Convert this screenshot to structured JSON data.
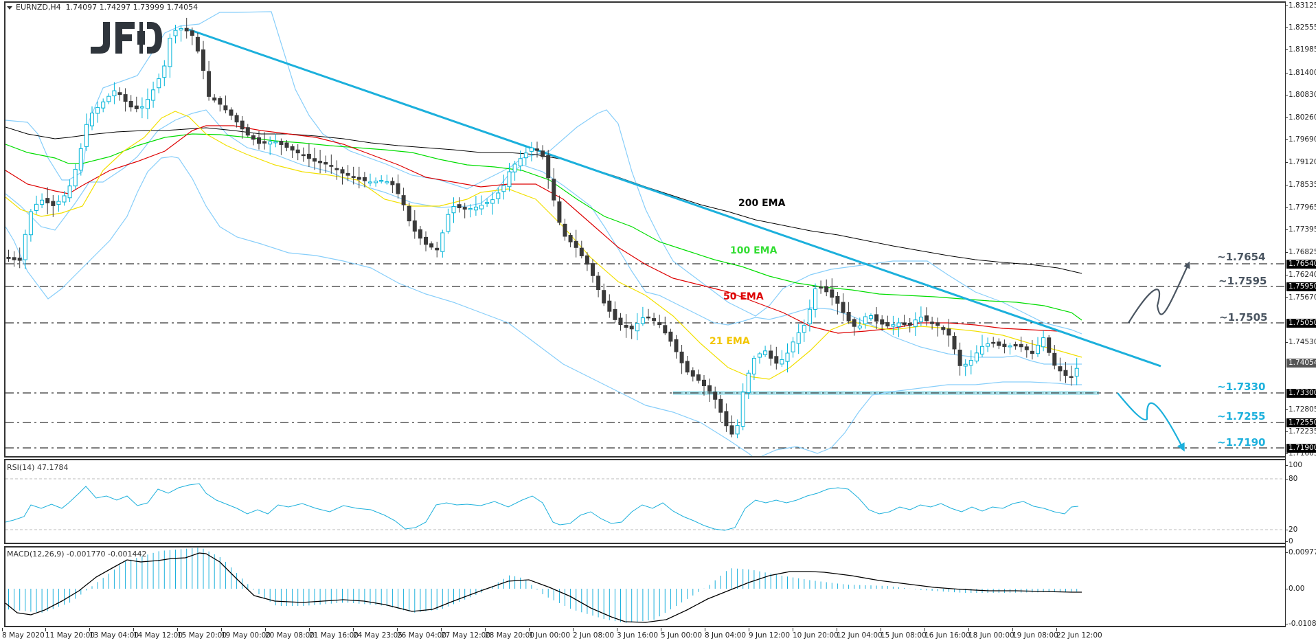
{
  "header": {
    "symbol": "EURNZD,H4",
    "ohlc": "1.74097 1.74297 1.73999 1.74054",
    "logo": "JFD"
  },
  "price_axis": {
    "ticks": [
      "1.83125",
      "1.82555",
      "1.81985",
      "1.81400",
      "1.80830",
      "1.80260",
      "1.79690",
      "1.79120",
      "1.78535",
      "1.77965",
      "1.77395",
      "1.76825",
      "1.76240",
      "1.75670",
      "1.74530",
      "1.72805",
      "1.72235",
      "1.71665"
    ],
    "labels": {
      "l1": "1.76540",
      "l2": "1.75950",
      "l3": "1.75050",
      "current": "1.74054",
      "l4": "1.73300",
      "l5": "1.72550",
      "l6": "1.71900"
    }
  },
  "annotations": {
    "ema200": "200 EMA",
    "ema100": "100 EMA",
    "ema50": "50 EMA",
    "ema21": "21 EMA",
    "r1": "~1.7654",
    "r2": "~1.7595",
    "r3": "~1.7505",
    "s1": "~1.7330",
    "s2": "~1.7255",
    "s3": "~1.7190"
  },
  "rsi": {
    "label": "RSI(14) 47.1784",
    "ticks": [
      "100",
      "80",
      "20",
      "0"
    ]
  },
  "macd": {
    "label": "MACD(12,26,9) -0.001770 -0.001442",
    "ticks": [
      "0.009779",
      "0.00",
      "-0.010821"
    ]
  },
  "time_axis": {
    "ticks": [
      "8 May 2020",
      "11 May 20:00",
      "13 May 04:00",
      "14 May 12:00",
      "15 May 20:00",
      "19 May 00:00",
      "20 May 08:00",
      "21 May 16:00",
      "24 May 23:05",
      "26 May 04:00",
      "27 May 12:00",
      "28 May 20:00",
      "1 Jun 00:00",
      "2 Jun 08:00",
      "3 Jun 16:00",
      "5 Jun 00:00",
      "8 Jun 04:00",
      "9 Jun 12:00",
      "10 Jun 20:00",
      "12 Jun 04:00",
      "15 Jun 08:00",
      "16 Jun 16:00",
      "18 Jun 00:00",
      "19 Jun 08:00",
      "22 Jun 12:00"
    ]
  },
  "colors": {
    "bull": "#00b4d8",
    "bear": "#3a3a3a",
    "ema200": "#000000",
    "ema100": "#00dd00",
    "ema50": "#dd0000",
    "ema21": "#f2e000",
    "bollinger": "#87cefa",
    "trendline": "#1cb0dc",
    "resistance_text": "#4a5561",
    "support_text": "#1cb0dc"
  },
  "chart_data": {
    "type": "candlestick",
    "title": "EURNZD,H4 1.74097 1.74297 1.73999 1.74054",
    "xlabel": "",
    "ylabel": "",
    "ylim": [
      1.71665,
      1.83125
    ],
    "x_ticks": [
      "8 May 2020",
      "11 May 20:00",
      "13 May 04:00",
      "14 May 12:00",
      "15 May 20:00",
      "19 May 00:00",
      "20 May 08:00",
      "21 May 16:00",
      "24 May 23:05",
      "26 May 04:00",
      "27 May 12:00",
      "28 May 20:00",
      "1 Jun 00:00",
      "2 Jun 08:00",
      "3 Jun 16:00",
      "5 Jun 00:00",
      "8 Jun 04:00",
      "9 Jun 12:00",
      "10 Jun 20:00",
      "12 Jun 04:00",
      "15 Jun 08:00",
      "16 Jun 16:00",
      "18 Jun 00:00",
      "19 Jun 08:00",
      "22 Jun 12:00"
    ],
    "last_ohlc": {
      "open": 1.74097,
      "high": 1.74297,
      "low": 1.73999,
      "close": 1.74054
    },
    "horizontal_levels": [
      {
        "label": "~1.7654",
        "value": 1.7654,
        "type": "resistance"
      },
      {
        "label": "~1.7595",
        "value": 1.7595,
        "type": "resistance"
      },
      {
        "label": "~1.7505",
        "value": 1.7505,
        "type": "resistance"
      },
      {
        "label": "~1.7330",
        "value": 1.733,
        "type": "support"
      },
      {
        "label": "~1.7255",
        "value": 1.7255,
        "type": "support"
      },
      {
        "label": "~1.7190",
        "value": 1.719,
        "type": "support"
      }
    ],
    "series": [
      {
        "name": "200 EMA",
        "approx_values": [
          1.8,
          1.799,
          1.801,
          1.8,
          1.797,
          1.793,
          1.785,
          1.778,
          1.772,
          1.767,
          1.764
        ]
      },
      {
        "name": "100 EMA",
        "approx_values": [
          1.797,
          1.794,
          1.799,
          1.795,
          1.793,
          1.788,
          1.778,
          1.766,
          1.76,
          1.756,
          1.751
        ]
      },
      {
        "name": "50 EMA",
        "approx_values": [
          1.79,
          1.787,
          1.801,
          1.794,
          1.788,
          1.778,
          1.76,
          1.752,
          1.751,
          1.749,
          1.745
        ]
      },
      {
        "name": "21 EMA",
        "approx_values": [
          1.784,
          1.79,
          1.804,
          1.79,
          1.782,
          1.766,
          1.745,
          1.74,
          1.748,
          1.744,
          1.742
        ]
      }
    ],
    "trendline": {
      "from": {
        "x": "15 May 20:00",
        "y": 1.8255
      },
      "to": {
        "x": "22 Jun 20:00",
        "y": 1.7395
      }
    },
    "indicators": {
      "rsi": {
        "period": 14,
        "value": 47.1784,
        "levels": [
          20,
          80
        ],
        "ylim": [
          0,
          100
        ]
      },
      "macd": {
        "params": "12,26,9",
        "macd": -0.00177,
        "signal": -0.001442,
        "ylim": [
          -0.010821,
          0.009779
        ]
      }
    }
  }
}
